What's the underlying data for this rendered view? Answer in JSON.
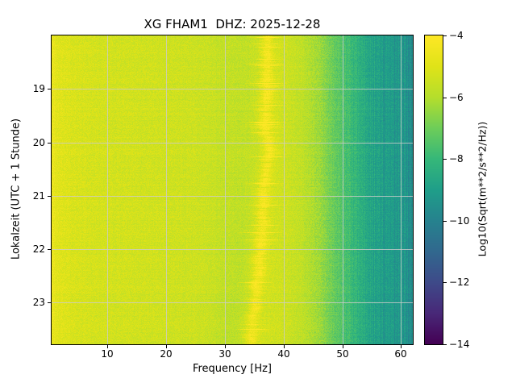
{
  "chart_data": {
    "type": "heatmap",
    "subtype": "spectrogram",
    "title": "XG FHAM1  DHZ: 2025-12-28",
    "xlabel": "Frequency [Hz]",
    "ylabel": "Lokalzeit (UTC + 1 Stunde)",
    "x_ticks": [
      10,
      20,
      30,
      40,
      50,
      60
    ],
    "y_ticks": [
      19,
      20,
      21,
      22,
      23
    ],
    "xlim": [
      0.5,
      62
    ],
    "ylim_hours": [
      18.0,
      23.78
    ],
    "y_axis_direction": "time increases downward",
    "grid": true,
    "colormap": "viridis",
    "colorbar": {
      "label": "Log10(Sqrt(m**2/s**2/Hz))",
      "tick_labels": [
        "−4",
        "−6",
        "−8",
        "−10",
        "−12",
        "−14"
      ],
      "tick_values": [
        -4,
        -6,
        -8,
        -10,
        -12,
        -14
      ],
      "vmin": -14,
      "vmax": -4
    },
    "background_profile": [
      [
        0.5,
        -4.6
      ],
      [
        1.5,
        -4.9
      ],
      [
        4,
        -5.15
      ],
      [
        10,
        -5.3
      ],
      [
        18,
        -5.35
      ],
      [
        26,
        -5.45
      ],
      [
        30,
        -5.65
      ],
      [
        33,
        -5.6
      ],
      [
        36,
        -5.5
      ],
      [
        40,
        -5.45
      ],
      [
        43,
        -5.7
      ],
      [
        46,
        -6.3
      ],
      [
        48,
        -6.9
      ],
      [
        50,
        -7.5
      ],
      [
        53,
        -8.3
      ],
      [
        56,
        -8.9
      ],
      [
        59,
        -9.25
      ],
      [
        62,
        -9.5
      ]
    ],
    "ridge": {
      "description": "narrow bright spectral line near 34-38 Hz meandering with time",
      "path_by_time_fraction": [
        [
          0,
          37.4
        ],
        [
          0.3,
          37.2
        ],
        [
          0.45,
          37.0
        ],
        [
          0.55,
          36.4
        ],
        [
          0.68,
          35.9
        ],
        [
          0.8,
          35.4
        ],
        [
          0.9,
          35.0
        ],
        [
          1,
          34.4
        ]
      ],
      "freq_min": 34.0,
      "freq_max": 38.6,
      "peak_boost": 1.1
    },
    "noise_level": 0.35
  },
  "colors": {
    "grid": "#cccccc",
    "spine": "#000000",
    "text": "#000000",
    "background": "#ffffff"
  }
}
